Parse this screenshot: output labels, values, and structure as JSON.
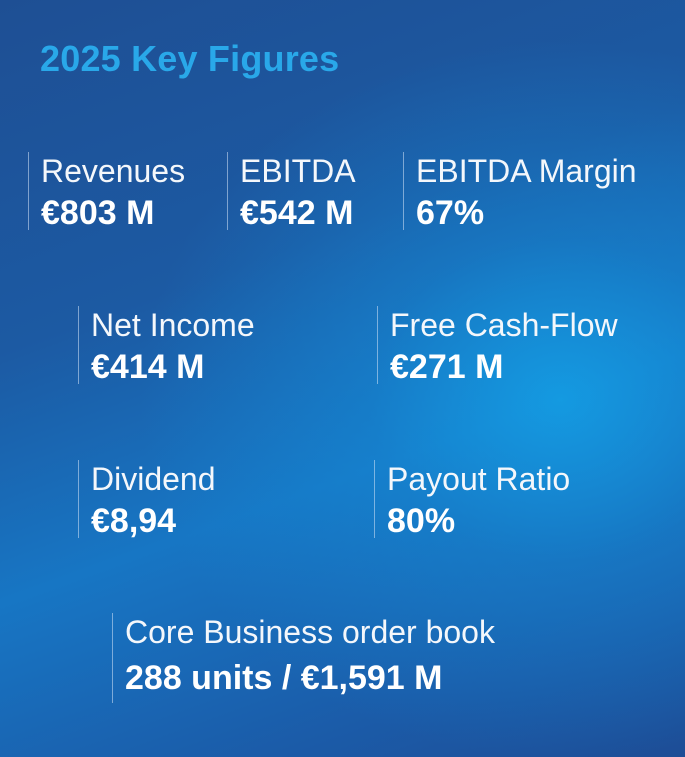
{
  "title": "2025 Key Figures",
  "colors": {
    "title_accent": "#29a8e9",
    "background_dark": "#1e4f94",
    "background_light": "#14a0e6",
    "text": "#ffffff"
  },
  "metrics": [
    {
      "label": "Revenues",
      "value": "€803 M"
    },
    {
      "label": "EBITDA",
      "value": "€542 M"
    },
    {
      "label": "EBITDA Margin",
      "value": "67%"
    },
    {
      "label": "Net Income",
      "value": "€414 M"
    },
    {
      "label": "Free Cash-Flow",
      "value": "€271 M"
    },
    {
      "label": "Dividend",
      "value": "€8,94"
    },
    {
      "label": "Payout Ratio",
      "value": "80%"
    },
    {
      "label": "Core Business order book",
      "value": "288 units / €1,591 M"
    }
  ]
}
